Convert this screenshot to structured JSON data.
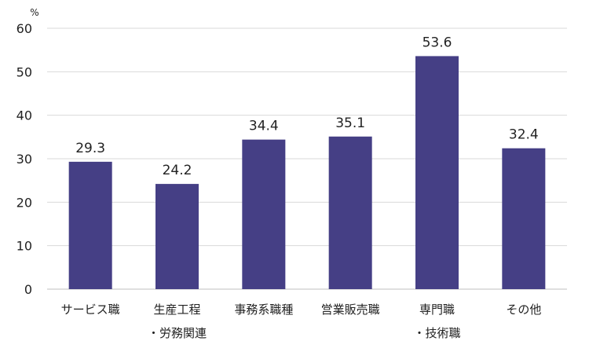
{
  "chart_data": {
    "type": "bar",
    "unit": "%",
    "categories": [
      [
        "サービス職"
      ],
      [
        "生産工程",
        "・労務関連"
      ],
      [
        "事務系職種"
      ],
      [
        "営業販売職"
      ],
      [
        "専門職",
        "・技術職"
      ],
      [
        "その他"
      ]
    ],
    "values": [
      29.3,
      24.2,
      34.4,
      35.1,
      53.6,
      32.4
    ],
    "ylim": [
      0,
      60
    ],
    "yticks": [
      0,
      10,
      20,
      30,
      40,
      50,
      60
    ],
    "grid": true,
    "bar_color": "#453f85"
  }
}
